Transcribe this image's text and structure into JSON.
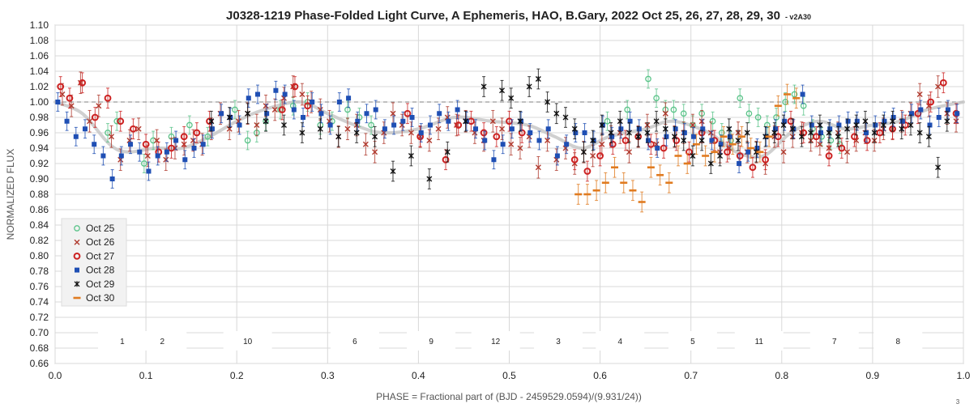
{
  "chart_data": {
    "type": "scatter",
    "title": "J0328-1219 Phase-Folded Light Curve, A Ephemeris, HAO, B.Gary, 2022 Oct 25, 26, 27, 28, 29, 30",
    "title_suffix": "- v2A30",
    "xlabel": "PHASE = Fractional part of (BJD - 2459529.0594)/(9.931/24))",
    "ylabel": "NORMALIZED FLUX",
    "xlim": [
      0.0,
      1.0
    ],
    "ylim": [
      0.66,
      1.1
    ],
    "x_ticks": [
      "0.0",
      "0.1",
      "0.2",
      "0.3",
      "0.4",
      "0.5",
      "0.6",
      "0.7",
      "0.8",
      "0.9",
      "1.0"
    ],
    "y_ticks": [
      "1.10",
      "1.08",
      "1.06",
      "1.04",
      "1.02",
      "1.00",
      "0.98",
      "0.96",
      "0.94",
      "0.92",
      "0.90",
      "0.88",
      "0.86",
      "0.84",
      "0.82",
      "0.80",
      "0.78",
      "0.76",
      "0.74",
      "0.72",
      "0.70",
      "0.68",
      "0.66"
    ],
    "reference_line": 1.0,
    "grid": true,
    "legend_position": "left",
    "corner_note": "3",
    "colors": {
      "oct25": "#5cc48a",
      "oct26": "#b03a2e",
      "oct27": "#cc2222",
      "oct28": "#1f4fb4",
      "oct29": "#111111",
      "oct30": "#e07b20",
      "model": "#c8c8c8",
      "grid": "#d8d8d8",
      "refline": "#999999"
    },
    "model_curve": {
      "x": [
        0.0,
        0.03,
        0.06,
        0.08,
        0.11,
        0.14,
        0.17,
        0.2,
        0.23,
        0.27,
        0.3,
        0.33,
        0.36,
        0.4,
        0.44,
        0.48,
        0.52,
        0.55,
        0.58,
        0.61,
        0.65,
        0.68,
        0.72,
        0.75,
        0.78,
        0.81,
        0.84,
        0.87,
        0.9,
        0.93,
        0.96,
        1.0
      ],
      "y": [
        1.0,
        0.985,
        0.945,
        0.935,
        0.94,
        0.94,
        0.955,
        0.975,
        0.99,
        1.0,
        0.985,
        0.97,
        0.96,
        0.965,
        0.98,
        0.975,
        0.97,
        0.955,
        0.94,
        0.955,
        0.965,
        0.975,
        0.96,
        0.935,
        0.93,
        0.96,
        0.975,
        0.965,
        0.97,
        0.975,
        0.99,
        1.0
      ]
    },
    "segment_labels": [
      {
        "x": 0.074,
        "text": "1"
      },
      {
        "x": 0.118,
        "text": "2"
      },
      {
        "x": 0.212,
        "text": "10"
      },
      {
        "x": 0.33,
        "text": "6"
      },
      {
        "x": 0.414,
        "text": "9"
      },
      {
        "x": 0.485,
        "text": "12"
      },
      {
        "x": 0.554,
        "text": "3"
      },
      {
        "x": 0.622,
        "text": "4"
      },
      {
        "x": 0.702,
        "text": "5"
      },
      {
        "x": 0.775,
        "text": "11"
      },
      {
        "x": 0.858,
        "text": "7"
      },
      {
        "x": 0.928,
        "text": "8"
      }
    ],
    "series": [
      {
        "name": "Oct 25",
        "marker": "circle-open",
        "x": [
          0.058,
          0.068,
          0.098,
          0.108,
          0.128,
          0.148,
          0.168,
          0.198,
          0.212,
          0.222,
          0.232,
          0.248,
          0.262,
          0.278,
          0.292,
          0.305,
          0.322,
          0.335,
          0.348,
          0.608,
          0.63,
          0.653,
          0.662,
          0.672,
          0.681,
          0.692,
          0.702,
          0.712,
          0.724,
          0.734,
          0.744,
          0.754,
          0.764,
          0.774,
          0.784,
          0.794,
          0.804,
          0.814,
          0.824,
          0.834,
          0.844,
          0.854,
          0.864
        ],
        "y": [
          0.96,
          0.975,
          0.92,
          0.95,
          0.955,
          0.97,
          0.955,
          0.99,
          0.95,
          0.96,
          0.975,
          0.99,
          0.995,
          1.0,
          0.97,
          0.975,
          0.99,
          0.98,
          0.97,
          0.975,
          0.99,
          1.03,
          1.005,
          0.99,
          0.99,
          0.985,
          0.97,
          0.985,
          0.975,
          0.96,
          0.95,
          1.005,
          0.985,
          0.98,
          0.97,
          0.98,
          1.0,
          1.01,
          0.995,
          0.965,
          0.955,
          0.95,
          0.945
        ],
        "yerr": 0.012
      },
      {
        "name": "Oct 26",
        "marker": "x",
        "x": [
          0.008,
          0.018,
          0.028,
          0.038,
          0.048,
          0.062,
          0.072,
          0.082,
          0.092,
          0.102,
          0.112,
          0.122,
          0.132,
          0.142,
          0.152,
          0.162,
          0.172,
          0.182,
          0.192,
          0.202,
          0.212,
          0.222,
          0.232,
          0.242,
          0.252,
          0.262,
          0.272,
          0.282,
          0.292,
          0.302,
          0.312,
          0.322,
          0.332,
          0.342,
          0.352,
          0.362,
          0.372,
          0.382,
          0.392,
          0.402,
          0.412,
          0.422,
          0.432,
          0.442,
          0.452,
          0.462,
          0.472,
          0.482,
          0.492,
          0.502,
          0.512,
          0.522,
          0.532,
          0.542,
          0.552,
          0.562,
          0.572,
          0.582,
          0.592,
          0.602,
          0.612,
          0.622,
          0.632,
          0.642,
          0.652,
          0.662,
          0.672,
          0.682,
          0.692,
          0.702,
          0.712,
          0.722,
          0.732,
          0.742,
          0.752,
          0.762,
          0.772,
          0.782,
          0.792,
          0.802,
          0.812,
          0.822,
          0.832,
          0.842,
          0.852,
          0.862,
          0.872,
          0.882,
          0.892,
          0.902,
          0.912,
          0.922,
          0.932,
          0.942,
          0.952,
          0.962,
          0.972,
          0.982,
          0.992
        ],
        "y": [
          1.01,
          0.995,
          1.025,
          0.975,
          0.995,
          0.955,
          0.925,
          0.95,
          0.965,
          0.93,
          0.95,
          0.925,
          0.94,
          0.945,
          0.95,
          0.945,
          0.965,
          0.985,
          0.965,
          0.975,
          0.985,
          0.97,
          0.995,
          0.99,
          1.005,
          1.02,
          1.01,
          1.0,
          0.99,
          0.975,
          0.955,
          0.965,
          0.97,
          0.945,
          0.935,
          0.96,
          0.985,
          0.97,
          0.96,
          0.955,
          0.95,
          0.965,
          0.98,
          0.97,
          0.975,
          0.96,
          0.95,
          0.975,
          0.965,
          0.945,
          0.94,
          0.955,
          0.915,
          0.95,
          0.925,
          0.94,
          0.92,
          0.935,
          0.93,
          0.945,
          0.955,
          0.96,
          0.935,
          0.955,
          0.97,
          0.945,
          0.985,
          0.955,
          0.96,
          0.97,
          0.975,
          0.96,
          0.935,
          0.94,
          0.96,
          0.935,
          0.935,
          0.92,
          0.955,
          0.935,
          0.955,
          0.96,
          0.95,
          0.945,
          0.94,
          0.96,
          0.935,
          0.95,
          0.96,
          0.95,
          0.965,
          0.965,
          0.975,
          0.985,
          1.01,
          0.995,
          1.02,
          0.985,
          0.975
        ],
        "yerr": 0.014
      },
      {
        "name": "Oct 27",
        "marker": "circle-open-bold",
        "x": [
          0.006,
          0.016,
          0.03,
          0.044,
          0.058,
          0.072,
          0.086,
          0.1,
          0.114,
          0.128,
          0.142,
          0.156,
          0.17,
          0.25,
          0.264,
          0.278,
          0.388,
          0.402,
          0.43,
          0.444,
          0.458,
          0.472,
          0.486,
          0.5,
          0.514,
          0.572,
          0.586,
          0.6,
          0.614,
          0.628,
          0.642,
          0.656,
          0.67,
          0.684,
          0.698,
          0.712,
          0.726,
          0.74,
          0.754,
          0.768,
          0.782,
          0.796,
          0.81,
          0.824,
          0.838,
          0.852,
          0.866,
          0.88,
          0.894,
          0.908,
          0.922,
          0.936,
          0.95,
          0.964,
          0.978,
          0.992
        ],
        "y": [
          1.02,
          1.005,
          1.025,
          0.98,
          1.005,
          0.975,
          0.965,
          0.945,
          0.935,
          0.94,
          0.955,
          0.96,
          0.975,
          0.99,
          1.02,
          0.995,
          0.985,
          0.955,
          0.925,
          0.97,
          0.975,
          0.96,
          0.955,
          0.975,
          0.96,
          0.925,
          0.91,
          0.93,
          0.945,
          0.95,
          0.955,
          0.945,
          0.94,
          0.95,
          0.935,
          0.96,
          0.95,
          0.935,
          0.93,
          0.915,
          0.925,
          0.955,
          0.975,
          0.96,
          0.955,
          0.93,
          0.94,
          0.955,
          0.95,
          0.96,
          0.965,
          0.97,
          0.985,
          1.0,
          1.025,
          0.985
        ],
        "yerr": 0.013
      },
      {
        "name": "Oct 28",
        "marker": "square",
        "x": [
          0.003,
          0.013,
          0.023,
          0.033,
          0.043,
          0.053,
          0.063,
          0.073,
          0.083,
          0.093,
          0.103,
          0.113,
          0.123,
          0.133,
          0.143,
          0.153,
          0.163,
          0.173,
          0.183,
          0.193,
          0.203,
          0.213,
          0.223,
          0.233,
          0.243,
          0.253,
          0.263,
          0.273,
          0.283,
          0.293,
          0.303,
          0.313,
          0.323,
          0.333,
          0.343,
          0.353,
          0.363,
          0.373,
          0.383,
          0.393,
          0.403,
          0.413,
          0.423,
          0.433,
          0.443,
          0.453,
          0.463,
          0.473,
          0.483,
          0.493,
          0.503,
          0.513,
          0.523,
          0.533,
          0.543,
          0.553,
          0.563,
          0.573,
          0.583,
          0.593,
          0.603,
          0.613,
          0.623,
          0.633,
          0.643,
          0.653,
          0.663,
          0.673,
          0.683,
          0.693,
          0.703,
          0.713,
          0.723,
          0.733,
          0.743,
          0.753,
          0.763,
          0.773,
          0.783,
          0.793,
          0.803,
          0.813,
          0.823,
          0.833,
          0.843,
          0.853,
          0.863,
          0.873,
          0.883,
          0.893,
          0.903,
          0.913,
          0.923,
          0.933,
          0.943,
          0.953,
          0.963,
          0.973,
          0.983,
          0.993
        ],
        "y": [
          1.0,
          0.975,
          0.955,
          0.965,
          0.945,
          0.93,
          0.9,
          0.93,
          0.945,
          0.935,
          0.91,
          0.93,
          0.935,
          0.95,
          0.925,
          0.94,
          0.945,
          0.965,
          0.985,
          0.98,
          0.97,
          1.005,
          1.01,
          0.985,
          1.015,
          1.01,
          0.99,
          0.98,
          1.0,
          0.985,
          0.97,
          1.0,
          1.005,
          0.975,
          0.985,
          0.99,
          0.965,
          0.97,
          0.975,
          0.98,
          0.96,
          0.97,
          0.985,
          0.975,
          0.99,
          0.975,
          0.965,
          0.95,
          0.925,
          0.945,
          0.965,
          0.975,
          0.96,
          0.95,
          0.965,
          0.93,
          0.945,
          0.96,
          0.96,
          0.95,
          0.97,
          0.955,
          0.965,
          0.975,
          0.965,
          0.95,
          0.94,
          0.955,
          0.965,
          0.96,
          0.955,
          0.965,
          0.95,
          0.945,
          0.955,
          0.92,
          0.935,
          0.94,
          0.955,
          0.965,
          0.975,
          0.965,
          1.01,
          0.97,
          0.96,
          0.965,
          0.97,
          0.975,
          0.975,
          0.96,
          0.97,
          0.975,
          0.98,
          0.975,
          0.985,
          0.99,
          0.97,
          0.98,
          0.99,
          0.985
        ],
        "yerr": 0.012
      },
      {
        "name": "Oct 29",
        "marker": "star",
        "x": [
          0.172,
          0.192,
          0.212,
          0.232,
          0.252,
          0.272,
          0.292,
          0.312,
          0.332,
          0.352,
          0.372,
          0.392,
          0.412,
          0.432,
          0.452,
          0.472,
          0.492,
          0.502,
          0.512,
          0.522,
          0.532,
          0.542,
          0.552,
          0.562,
          0.572,
          0.582,
          0.592,
          0.602,
          0.612,
          0.622,
          0.632,
          0.642,
          0.652,
          0.662,
          0.672,
          0.682,
          0.692,
          0.702,
          0.712,
          0.722,
          0.732,
          0.742,
          0.752,
          0.762,
          0.772,
          0.782,
          0.792,
          0.802,
          0.812,
          0.822,
          0.832,
          0.842,
          0.852,
          0.862,
          0.872,
          0.882,
          0.892,
          0.902,
          0.912,
          0.922,
          0.932,
          0.942,
          0.952,
          0.962,
          0.972,
          0.982
        ],
        "y": [
          0.975,
          0.98,
          0.985,
          0.975,
          0.97,
          0.96,
          0.965,
          0.955,
          0.96,
          0.955,
          0.91,
          0.93,
          0.9,
          0.935,
          0.975,
          1.02,
          1.015,
          1.005,
          0.975,
          1.02,
          1.03,
          1.0,
          0.985,
          0.98,
          0.965,
          0.935,
          0.95,
          0.97,
          0.96,
          0.975,
          0.96,
          0.955,
          0.96,
          0.975,
          0.965,
          0.955,
          0.95,
          0.93,
          0.95,
          0.92,
          0.93,
          0.965,
          0.95,
          0.96,
          0.935,
          0.955,
          0.96,
          0.97,
          0.965,
          0.955,
          0.96,
          0.97,
          0.96,
          0.955,
          0.965,
          0.97,
          0.975,
          0.96,
          0.97,
          0.975,
          0.965,
          0.97,
          0.96,
          0.955,
          0.915,
          0.975
        ],
        "yerr": 0.013
      },
      {
        "name": "Oct 30",
        "marker": "dash",
        "x": [
          0.576,
          0.586,
          0.596,
          0.606,
          0.616,
          0.626,
          0.636,
          0.646,
          0.656,
          0.666,
          0.676,
          0.686,
          0.696,
          0.706,
          0.716,
          0.726,
          0.736,
          0.746,
          0.756,
          0.766,
          0.776,
          0.786,
          0.796,
          0.806,
          0.816
        ],
        "y": [
          0.88,
          0.88,
          0.885,
          0.895,
          0.915,
          0.895,
          0.885,
          0.87,
          0.915,
          0.905,
          0.895,
          0.93,
          0.92,
          0.945,
          0.93,
          0.935,
          0.955,
          0.945,
          0.955,
          0.94,
          0.935,
          0.955,
          0.995,
          1.01,
          1.005
        ],
        "yerr": 0.013
      }
    ]
  }
}
